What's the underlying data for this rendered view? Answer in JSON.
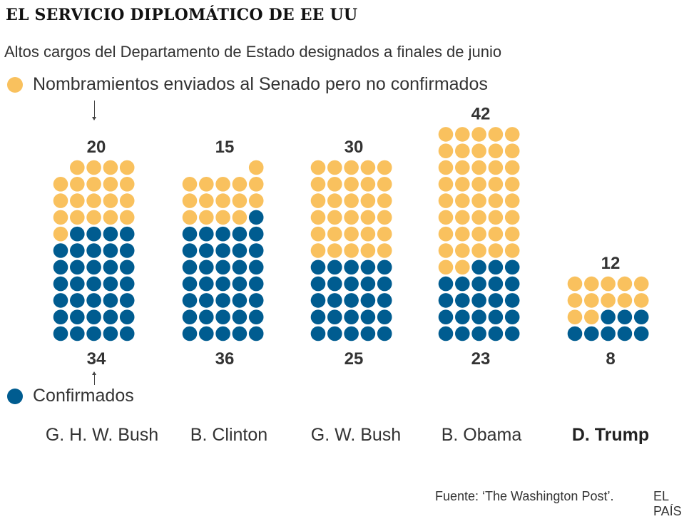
{
  "title": "EL SERVICIO DIPLOMÁTICO DE EE UU",
  "subtitle": "Altos cargos del Departamento de Estado designados a finales de junio",
  "legend": {
    "pending": "Nombramientos enviados al Senado pero no confirmados",
    "confirmed": "Confirmados"
  },
  "colors": {
    "pending": "#F9C15E",
    "confirmed": "#005C90"
  },
  "chart_data": {
    "type": "waffle",
    "title": "EL SERVICIO DIPLOMÁTICO DE EE UU",
    "categories": [
      "G. H. W. Bush",
      "B. Clinton",
      "G. W. Bush",
      "B. Obama",
      "D. Trump"
    ],
    "highlight": "D. Trump",
    "series": [
      {
        "name": "Nombramientos enviados al Senado pero no confirmados",
        "values": [
          20,
          15,
          30,
          42,
          12
        ]
      },
      {
        "name": "Confirmados",
        "values": [
          34,
          36,
          25,
          23,
          8
        ]
      }
    ]
  },
  "source": "Fuente: ‘The Washington Post’.",
  "brand": "EL PAÍS"
}
